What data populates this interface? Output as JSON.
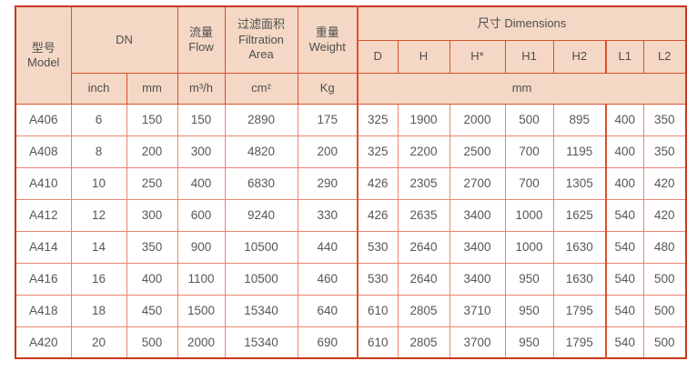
{
  "colors": {
    "header_bg": "#f4d8c5",
    "border_dark": "#dd4f2e",
    "border_outer": "#c8371f",
    "border_light": "#ea8470",
    "header_text": "#4e4e4e",
    "cell_text": "#575757",
    "page_bg": "#ffffff"
  },
  "table": {
    "header": {
      "model": "型号\nModel",
      "dn": "DN",
      "flow": "流量\nFlow",
      "filtration_area": "过滤面积\nFiltration\nArea",
      "weight": "重量\nWeight",
      "dimensions": "尺寸 Dimensions",
      "dim_columns": [
        "D",
        "H",
        "H*",
        "H1",
        "H2",
        "L1",
        "L2"
      ],
      "unit_inch": "inch",
      "unit_mm": "mm",
      "unit_flow": "m³/h",
      "unit_area": "cm²",
      "unit_weight": "Kg",
      "unit_dimensions": "mm"
    },
    "rows": [
      {
        "model": "A406",
        "dn_inch": "6",
        "dn_mm": "150",
        "flow": "150",
        "area": "2890",
        "weight": "175",
        "dims": [
          "325",
          "1900",
          "2000",
          "500",
          "895",
          "400",
          "350"
        ]
      },
      {
        "model": "A408",
        "dn_inch": "8",
        "dn_mm": "200",
        "flow": "300",
        "area": "4820",
        "weight": "200",
        "dims": [
          "325",
          "2200",
          "2500",
          "700",
          "1195",
          "400",
          "350"
        ]
      },
      {
        "model": "A410",
        "dn_inch": "10",
        "dn_mm": "250",
        "flow": "400",
        "area": "6830",
        "weight": "290",
        "dims": [
          "426",
          "2305",
          "2700",
          "700",
          "1305",
          "400",
          "420"
        ]
      },
      {
        "model": "A412",
        "dn_inch": "12",
        "dn_mm": "300",
        "flow": "600",
        "area": "9240",
        "weight": "330",
        "dims": [
          "426",
          "2635",
          "3400",
          "1000",
          "1625",
          "540",
          "420"
        ]
      },
      {
        "model": "A414",
        "dn_inch": "14",
        "dn_mm": "350",
        "flow": "900",
        "area": "10500",
        "weight": "440",
        "dims": [
          "530",
          "2640",
          "3400",
          "1000",
          "1630",
          "540",
          "480"
        ]
      },
      {
        "model": "A416",
        "dn_inch": "16",
        "dn_mm": "400",
        "flow": "1100",
        "area": "10500",
        "weight": "460",
        "dims": [
          "530",
          "2640",
          "3400",
          "950",
          "1630",
          "540",
          "500"
        ]
      },
      {
        "model": "A418",
        "dn_inch": "18",
        "dn_mm": "450",
        "flow": "1500",
        "area": "15340",
        "weight": "640",
        "dims": [
          "610",
          "2805",
          "3710",
          "950",
          "1795",
          "540",
          "500"
        ]
      },
      {
        "model": "A420",
        "dn_inch": "20",
        "dn_mm": "500",
        "flow": "2000",
        "area": "15340",
        "weight": "690",
        "dims": [
          "610",
          "2805",
          "3700",
          "950",
          "1795",
          "540",
          "500"
        ]
      }
    ]
  }
}
